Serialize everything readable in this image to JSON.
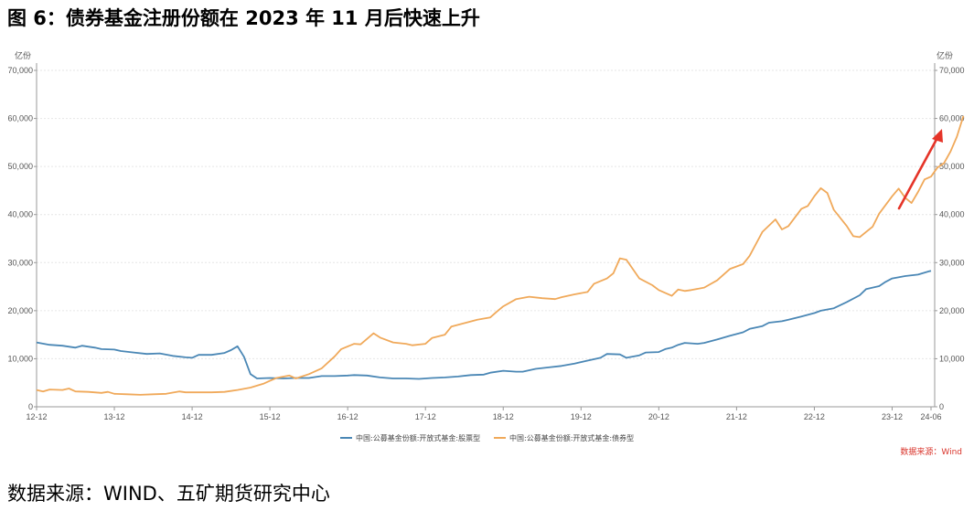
{
  "title": "图 6：债券基金注册份额在 2023 年 11 月后快速上升",
  "source_caption": "数据来源：WIND、五矿期货研究中心",
  "colors": {
    "equity": "#4a87b5",
    "bond": "#f0a95a",
    "arrow": "#e53428",
    "grid": "#e6e6e6",
    "axis": "#999999"
  },
  "chart_data": {
    "type": "line",
    "y_unit_left": "亿份",
    "y_unit_right": "亿份",
    "ylim": [
      0,
      70000
    ],
    "y_ticks": [
      "0",
      "10,000",
      "20,000",
      "30,000",
      "40,000",
      "50,000",
      "60,000",
      "70,000"
    ],
    "y_tick_values": [
      0,
      10000,
      20000,
      30000,
      40000,
      50000,
      60000,
      70000
    ],
    "x_ticks": [
      "12-12",
      "13-12",
      "14-12",
      "15-12",
      "16-12",
      "17-12",
      "18-12",
      "19-12",
      "20-12",
      "21-12",
      "22-12",
      "23-12",
      "24-06"
    ],
    "x_tick_positions": [
      0,
      12,
      24,
      36,
      48,
      60,
      72,
      84,
      96,
      108,
      120,
      132,
      138
    ],
    "x_domain": [
      0,
      138
    ],
    "source_note": "数据来源：Wind",
    "series": [
      {
        "name": "中国:公募基金份额:开放式基金:股票型",
        "color": "#4a87b5",
        "points": [
          [
            0,
            13400
          ],
          [
            2,
            12900
          ],
          [
            4,
            12700
          ],
          [
            6,
            12300
          ],
          [
            7,
            12700
          ],
          [
            9,
            12300
          ],
          [
            10,
            12000
          ],
          [
            12,
            11900
          ],
          [
            13,
            11600
          ],
          [
            15,
            11300
          ],
          [
            17,
            11000
          ],
          [
            19,
            11100
          ],
          [
            21,
            10600
          ],
          [
            23,
            10300
          ],
          [
            24,
            10200
          ],
          [
            25,
            10800
          ],
          [
            27,
            10800
          ],
          [
            29,
            11200
          ],
          [
            30,
            11800
          ],
          [
            31,
            12600
          ],
          [
            32,
            10400
          ],
          [
            33,
            6800
          ],
          [
            34,
            5900
          ],
          [
            36,
            6000
          ],
          [
            38,
            5900
          ],
          [
            40,
            6000
          ],
          [
            42,
            6000
          ],
          [
            44,
            6400
          ],
          [
            46,
            6400
          ],
          [
            48,
            6500
          ],
          [
            49,
            6600
          ],
          [
            51,
            6500
          ],
          [
            53,
            6100
          ],
          [
            55,
            5900
          ],
          [
            57,
            5900
          ],
          [
            59,
            5800
          ],
          [
            61,
            6000
          ],
          [
            63,
            6100
          ],
          [
            65,
            6300
          ],
          [
            67,
            6600
          ],
          [
            69,
            6700
          ],
          [
            70,
            7100
          ],
          [
            72,
            7500
          ],
          [
            74,
            7300
          ],
          [
            75,
            7300
          ],
          [
            77,
            7900
          ],
          [
            79,
            8200
          ],
          [
            81,
            8500
          ],
          [
            83,
            9000
          ],
          [
            85,
            9600
          ],
          [
            87,
            10200
          ],
          [
            88,
            11000
          ],
          [
            90,
            10900
          ],
          [
            91,
            10200
          ],
          [
            93,
            10700
          ],
          [
            94,
            11300
          ],
          [
            96,
            11400
          ],
          [
            97,
            12000
          ],
          [
            98,
            12300
          ],
          [
            99,
            12900
          ],
          [
            100,
            13300
          ],
          [
            102,
            13100
          ],
          [
            103,
            13300
          ],
          [
            105,
            14000
          ],
          [
            107,
            14800
          ],
          [
            109,
            15500
          ],
          [
            110,
            16200
          ],
          [
            112,
            16800
          ],
          [
            113,
            17500
          ],
          [
            115,
            17800
          ],
          [
            116,
            18100
          ],
          [
            118,
            18800
          ],
          [
            120,
            19500
          ],
          [
            121,
            20000
          ],
          [
            123,
            20500
          ],
          [
            125,
            21800
          ],
          [
            127,
            23200
          ],
          [
            128,
            24500
          ],
          [
            130,
            25100
          ],
          [
            131,
            26000
          ],
          [
            132,
            26700
          ],
          [
            134,
            27200
          ],
          [
            136,
            27500
          ],
          [
            138,
            28300
          ]
        ]
      },
      {
        "name": "中国:公募基金份额:开放式基金:债券型",
        "color": "#f0a95a",
        "points": [
          [
            0,
            3500
          ],
          [
            1,
            3200
          ],
          [
            2,
            3600
          ],
          [
            4,
            3500
          ],
          [
            5,
            3800
          ],
          [
            6,
            3200
          ],
          [
            8,
            3100
          ],
          [
            10,
            2900
          ],
          [
            11,
            3100
          ],
          [
            12,
            2700
          ],
          [
            14,
            2600
          ],
          [
            16,
            2500
          ],
          [
            18,
            2600
          ],
          [
            20,
            2700
          ],
          [
            22,
            3200
          ],
          [
            23,
            3000
          ],
          [
            25,
            3000
          ],
          [
            27,
            3000
          ],
          [
            29,
            3100
          ],
          [
            31,
            3500
          ],
          [
            33,
            4000
          ],
          [
            35,
            4800
          ],
          [
            36,
            5400
          ],
          [
            37,
            6000
          ],
          [
            39,
            6500
          ],
          [
            40,
            5900
          ],
          [
            42,
            6800
          ],
          [
            44,
            8000
          ],
          [
            46,
            10500
          ],
          [
            47,
            12000
          ],
          [
            49,
            13100
          ],
          [
            50,
            13000
          ],
          [
            52,
            15300
          ],
          [
            53,
            14400
          ],
          [
            55,
            13400
          ],
          [
            57,
            13100
          ],
          [
            58,
            12800
          ],
          [
            60,
            13100
          ],
          [
            61,
            14300
          ],
          [
            63,
            15000
          ],
          [
            64,
            16700
          ],
          [
            66,
            17400
          ],
          [
            68,
            18100
          ],
          [
            70,
            18600
          ],
          [
            71,
            19800
          ],
          [
            72,
            20900
          ],
          [
            74,
            22400
          ],
          [
            76,
            22900
          ],
          [
            78,
            22600
          ],
          [
            80,
            22400
          ],
          [
            81,
            22800
          ],
          [
            83,
            23400
          ],
          [
            85,
            23900
          ],
          [
            86,
            25600
          ],
          [
            88,
            26700
          ],
          [
            89,
            27800
          ],
          [
            90,
            30900
          ],
          [
            91,
            30600
          ],
          [
            93,
            26700
          ],
          [
            95,
            25300
          ],
          [
            96,
            24300
          ],
          [
            98,
            23100
          ],
          [
            99,
            24400
          ],
          [
            100,
            24100
          ],
          [
            101,
            24300
          ],
          [
            103,
            24800
          ],
          [
            105,
            26300
          ],
          [
            107,
            28700
          ],
          [
            109,
            29700
          ],
          [
            110,
            31400
          ],
          [
            112,
            36400
          ],
          [
            114,
            39000
          ],
          [
            115,
            36900
          ],
          [
            116,
            37600
          ],
          [
            118,
            41200
          ],
          [
            119,
            41800
          ],
          [
            120,
            43800
          ],
          [
            121,
            45500
          ],
          [
            122,
            44500
          ],
          [
            123,
            41000
          ],
          [
            125,
            37600
          ],
          [
            126,
            35500
          ],
          [
            127,
            35300
          ],
          [
            129,
            37500
          ],
          [
            130,
            40200
          ],
          [
            131,
            42000
          ],
          [
            132,
            43800
          ],
          [
            133,
            45400
          ],
          [
            134,
            43500
          ],
          [
            135,
            42400
          ],
          [
            136,
            44700
          ],
          [
            137,
            47300
          ],
          [
            138,
            47900
          ],
          [
            139,
            49800
          ],
          [
            140,
            50700
          ],
          [
            141,
            53100
          ],
          [
            142,
            56200
          ],
          [
            143,
            60500
          ]
        ]
      }
    ]
  }
}
